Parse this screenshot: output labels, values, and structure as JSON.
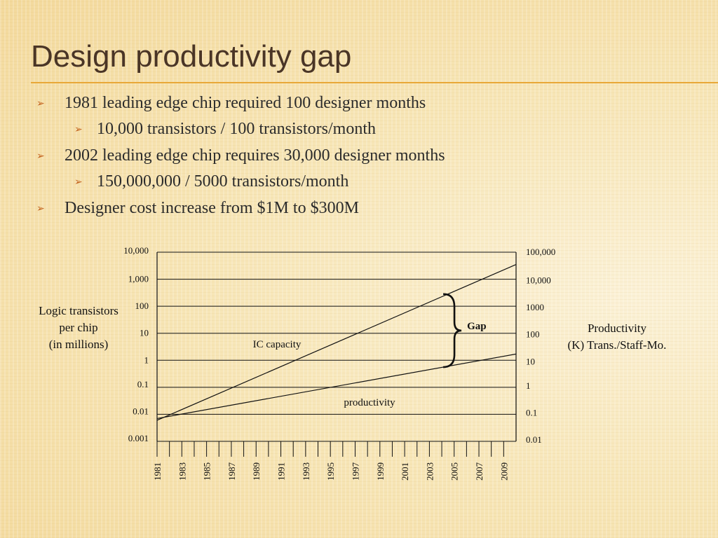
{
  "title": "Design productivity gap",
  "bullets": [
    {
      "level": 1,
      "text": "1981 leading edge chip required 100 designer months"
    },
    {
      "level": 2,
      "text": "10,000 transistors  /  100 transistors/month"
    },
    {
      "level": 1,
      "text": "2002 leading edge chip requires 30,000 designer months"
    },
    {
      "level": 2,
      "text": "150,000,000  /  5000 transistors/month"
    },
    {
      "level": 1,
      "text": "Designer cost increase from $1M to $300M"
    }
  ],
  "colors": {
    "title": "#4a3526",
    "rule": "#e8a838",
    "bullet_arrow": "#c2611b",
    "chart_lines": "#111111"
  },
  "chart_data": {
    "type": "line",
    "x_tick_labels": [
      "1981",
      "1983",
      "1985",
      "1987",
      "1989",
      "1991",
      "1993",
      "1995",
      "1997",
      "1999",
      "2001",
      "2003",
      "2005",
      "2007",
      "2009"
    ],
    "xlim": [
      1981,
      2010
    ],
    "y_scale": "log",
    "left_axis": {
      "label": [
        "Logic transistors",
        "per chip",
        "(in millions)"
      ],
      "tick_labels": [
        "10,000",
        "1,000",
        "100",
        "10",
        "1",
        "0.1",
        "0.01",
        "0.001"
      ],
      "ylim": [
        0.001,
        10000
      ]
    },
    "right_axis": {
      "label": [
        "Productivity",
        "(K) Trans./Staff-Mo."
      ],
      "tick_labels": [
        "100,000",
        "10,000",
        "1000",
        "100",
        "10",
        "1",
        "0.1",
        "0.01"
      ],
      "ylim": [
        0.01,
        100000
      ]
    },
    "grid": true,
    "series": [
      {
        "name": "IC capacity",
        "axis": "left",
        "x": [
          1981,
          2010
        ],
        "y": [
          0.006,
          3500
        ]
      },
      {
        "name": "productivity",
        "axis": "left",
        "x": [
          1981,
          2010
        ],
        "y": [
          0.007,
          1.7
        ]
      }
    ],
    "annotations": [
      {
        "text": "Gap",
        "x": 2004,
        "y_top": 250,
        "y_bottom": 0.8
      }
    ]
  }
}
